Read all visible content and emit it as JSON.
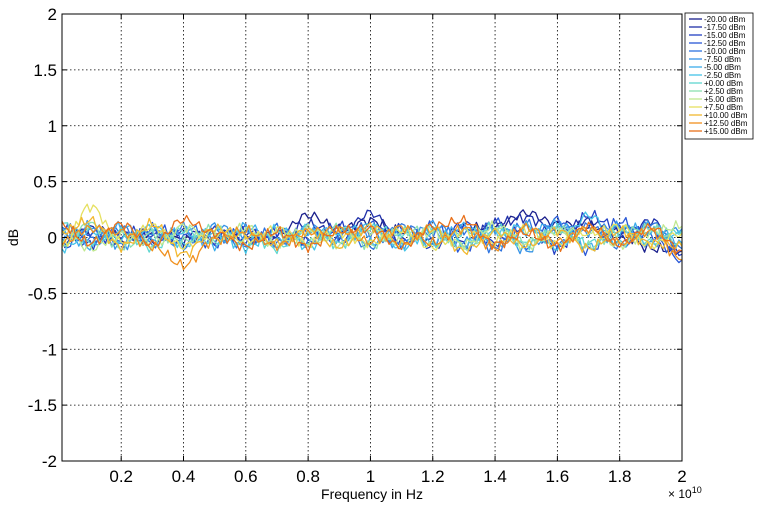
{
  "chart_data": {
    "type": "line",
    "xlabel": "Frequency in Hz",
    "ylabel": "dB",
    "x_multiplier_label": "× 10",
    "x_multiplier_exponent": "10",
    "xlim": [
      0.01,
      2.0
    ],
    "ylim": [
      -2,
      2
    ],
    "x_ticks": [
      0.2,
      0.4,
      0.6,
      0.8,
      1,
      1.2,
      1.4,
      1.6,
      1.8,
      2
    ],
    "x_tick_labels": [
      "0.2",
      "0.4",
      "0.6",
      "0.8",
      "1",
      "1.2",
      "1.4",
      "1.6",
      "1.8",
      "2"
    ],
    "y_ticks": [
      2,
      1.5,
      1,
      0.5,
      0,
      -0.5,
      -1,
      -1.5,
      -2
    ],
    "y_tick_labels": [
      "2",
      "1.5",
      "1",
      "0.5",
      "0",
      "-0.5",
      "-1",
      "-1.5",
      "-2"
    ],
    "grid": true,
    "legend_position": "top-right outside",
    "x": [
      0.01,
      0.1,
      0.2,
      0.3,
      0.4,
      0.5,
      0.6,
      0.7,
      0.8,
      0.9,
      1.0,
      1.1,
      1.2,
      1.3,
      1.4,
      1.5,
      1.6,
      1.7,
      1.8,
      1.9,
      2.0
    ],
    "series": [
      {
        "name": "-20.00 dBm",
        "color": "#1a1f8c",
        "values": [
          0.02,
          0.05,
          -0.03,
          0.04,
          -0.02,
          0.03,
          -0.01,
          0.02,
          0.2,
          0.08,
          0.15,
          0.05,
          -0.03,
          0.08,
          0.1,
          0.22,
          0.12,
          0.1,
          0.05,
          -0.1,
          -0.12
        ]
      },
      {
        "name": "-17.50 dBm",
        "color": "#1f2fa8",
        "values": [
          -0.05,
          0.08,
          0.02,
          -0.04,
          0.06,
          -0.03,
          0.05,
          -0.02,
          0.12,
          0.02,
          0.22,
          -0.03,
          0.06,
          -0.05,
          0.12,
          0.18,
          0.05,
          0.15,
          -0.02,
          0.15,
          -0.08
        ]
      },
      {
        "name": "-15.00 dBm",
        "color": "#2440c4",
        "values": [
          0.08,
          -0.06,
          0.06,
          0.03,
          -0.05,
          0.07,
          -0.04,
          0.05,
          -0.03,
          0.1,
          0.05,
          0.08,
          -0.08,
          0.12,
          -0.05,
          0.1,
          -0.1,
          0.2,
          0.08,
          0.05,
          -0.15
        ]
      },
      {
        "name": "-12.50 dBm",
        "color": "#2957d6",
        "values": [
          -0.08,
          0.04,
          -0.05,
          0.08,
          0.02,
          -0.06,
          0.08,
          -0.05,
          0.06,
          -0.04,
          0.12,
          -0.06,
          0.1,
          -0.1,
          0.14,
          -0.08,
          0.16,
          -0.12,
          0.14,
          0.02,
          -0.2
        ]
      },
      {
        "name": "-10.00 dBm",
        "color": "#2e74e0",
        "values": [
          0.1,
          -0.02,
          0.08,
          -0.06,
          0.09,
          0.02,
          -0.07,
          0.09,
          -0.05,
          0.06,
          -0.08,
          0.1,
          0.02,
          0.07,
          -0.1,
          0.12,
          -0.06,
          0.1,
          -0.08,
          0.12,
          -0.1
        ]
      },
      {
        "name": "-7.50 dBm",
        "color": "#3592e8",
        "values": [
          -0.03,
          0.1,
          -0.07,
          0.05,
          -0.08,
          0.1,
          0.03,
          -0.07,
          0.1,
          -0.02,
          0.04,
          -0.07,
          0.12,
          -0.04,
          0.08,
          -0.12,
          0.1,
          0.05,
          0.1,
          -0.06,
          0.08
        ]
      },
      {
        "name": "-5.00 dBm",
        "color": "#3cacec",
        "values": [
          0.05,
          -0.08,
          0.1,
          -0.03,
          0.05,
          -0.07,
          0.1,
          -0.03,
          0.04,
          0.08,
          -0.05,
          0.06,
          -0.05,
          0.1,
          -0.07,
          0.05,
          0.12,
          -0.08,
          0.05,
          0.1,
          -0.05
        ]
      },
      {
        "name": "-2.50 dBm",
        "color": "#45c4e8",
        "values": [
          -0.1,
          0.06,
          -0.02,
          0.09,
          -0.06,
          0.05,
          -0.09,
          0.07,
          -0.08,
          0.05,
          0.1,
          -0.09,
          0.07,
          -0.07,
          0.05,
          0.1,
          -0.09,
          0.2,
          -0.05,
          0.05,
          0.02
        ]
      },
      {
        "name": "+0.00 dBm",
        "color": "#5fd6d0",
        "values": [
          0.12,
          -0.04,
          0.05,
          -0.09,
          0.07,
          -0.04,
          0.06,
          -0.1,
          0.07,
          -0.06,
          0.08,
          0.04,
          -0.06,
          0.05,
          0.09,
          -0.06,
          0.07,
          -0.05,
          0.09,
          -0.04,
          0.06
        ]
      },
      {
        "name": "+2.50 dBm",
        "color": "#8ce0b0",
        "values": [
          -0.06,
          0.12,
          -0.09,
          0.04,
          -0.03,
          0.08,
          -0.06,
          0.04,
          -0.05,
          0.09,
          -0.07,
          0.05,
          0.08,
          -0.09,
          0.06,
          -0.04,
          0.08,
          -0.08,
          0.05,
          0.08,
          -0.06
        ]
      },
      {
        "name": "+5.00 dBm",
        "color": "#c0e890",
        "values": [
          0.07,
          -0.1,
          0.03,
          -0.07,
          0.1,
          -0.02,
          0.09,
          -0.06,
          0.08,
          -0.07,
          0.06,
          -0.04,
          0.05,
          -0.06,
          0.1,
          -0.08,
          0.05,
          0.06,
          -0.07,
          0.05,
          0.1
        ]
      },
      {
        "name": "+7.50 dBm",
        "color": "#e6e060",
        "values": [
          -0.08,
          0.28,
          -0.04,
          0.1,
          -0.08,
          0.05,
          -0.03,
          0.08,
          -0.06,
          0.04,
          -0.05,
          0.07,
          -0.09,
          0.06,
          -0.04,
          0.07,
          -0.06,
          0.04,
          0.1,
          -0.07,
          0.04
        ]
      },
      {
        "name": "+10.00 dBm",
        "color": "#f2b830",
        "values": [
          0.05,
          0.15,
          -0.08,
          0.12,
          -0.15,
          0.08,
          0.02,
          -0.05,
          0.06,
          -0.08,
          0.1,
          -0.06,
          0.08,
          -0.12,
          0.05,
          -0.07,
          0.06,
          -0.1,
          0.06,
          -0.05,
          -0.08
        ]
      },
      {
        "name": "+12.50 dBm",
        "color": "#f0901e",
        "values": [
          -0.04,
          0.08,
          0.05,
          -0.08,
          -0.25,
          -0.02,
          0.06,
          -0.07,
          0.05,
          0.07,
          -0.04,
          0.09,
          -0.05,
          0.08,
          -0.09,
          0.09,
          -0.04,
          0.08,
          -0.05,
          0.06,
          -0.2
        ]
      },
      {
        "name": "+15.00 dBm",
        "color": "#e8701a",
        "values": [
          0.1,
          -0.05,
          0.12,
          -0.06,
          0.16,
          0.04,
          -0.08,
          0.05,
          -0.08,
          0.06,
          0.08,
          -0.08,
          0.1,
          0.15,
          -0.06,
          0.04,
          -0.08,
          0.1,
          -0.06,
          0.09,
          -0.12
        ]
      }
    ]
  }
}
